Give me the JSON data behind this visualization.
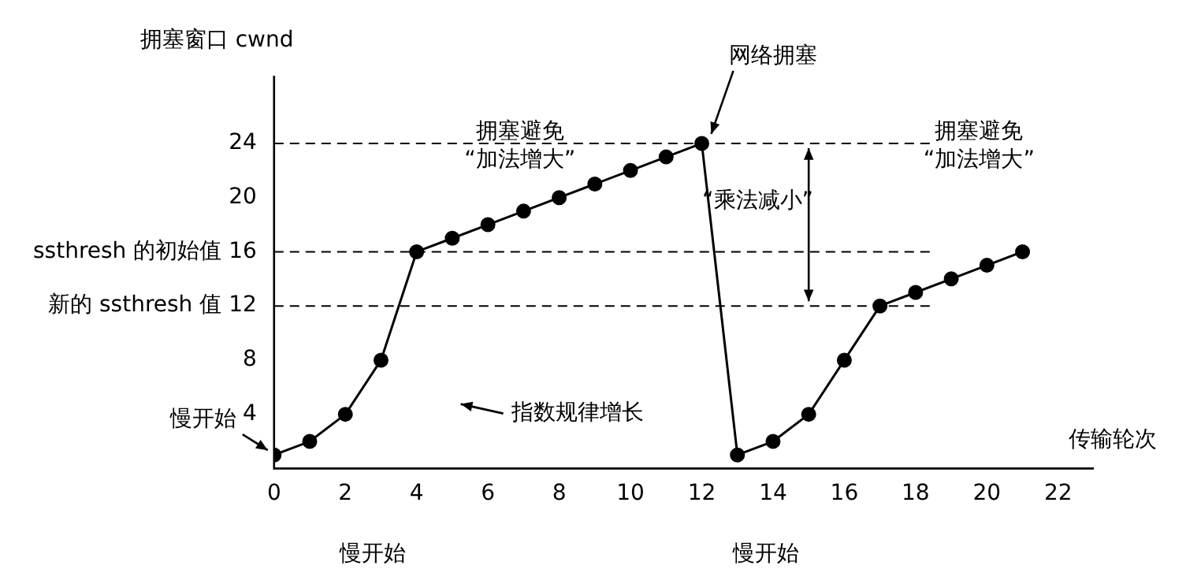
{
  "chart_data": {
    "type": "line",
    "xlabel": "传输轮次",
    "ylabel": "拥塞窗口 cwnd",
    "x": [
      0,
      1,
      2,
      3,
      4,
      5,
      6,
      7,
      8,
      9,
      10,
      11,
      12,
      13,
      14,
      15,
      16,
      17,
      18,
      19,
      20,
      21
    ],
    "series": [
      {
        "color": "#000000",
        "values": [
          1,
          2,
          4,
          8,
          16,
          17,
          18,
          19,
          20,
          21,
          22,
          23,
          24,
          1,
          2,
          4,
          8,
          12,
          13,
          14,
          15,
          16
        ]
      }
    ],
    "xlim": [
      0,
      23
    ],
    "xticks": [
      0,
      2,
      4,
      6,
      8,
      10,
      12,
      14,
      16,
      18,
      20,
      22
    ],
    "ylim": [
      0,
      29
    ],
    "yticks": [
      4,
      8,
      {
        "value": 12,
        "label": "新的 ssthresh 值 12"
      },
      {
        "value": 16,
        "label": "ssthresh 的初始值 16"
      },
      20,
      24
    ],
    "ref_lines": [
      {
        "axis": "y",
        "value": 24,
        "color": "#000000",
        "line_style": "dashed"
      },
      {
        "axis": "y",
        "value": 16,
        "color": "#000000",
        "line_style": "dashed"
      },
      {
        "axis": "y",
        "value": 12,
        "color": "#000000",
        "line_style": "dashed"
      }
    ],
    "annotations": [
      {
        "text": "网络拥塞",
        "x": 12,
        "y": 24
      },
      "指数规律增长",
      {
        "text": "慢开始",
        "x": 0,
        "y": 1
      },
      "拥塞避免 “加法增大”",
      "“乘法减小”",
      "拥塞避免 “加法增大”",
      "慢开始",
      "慢开始"
    ],
    "grid": false,
    "legend": false,
    "marker": "circle",
    "line_style": "solid"
  }
}
